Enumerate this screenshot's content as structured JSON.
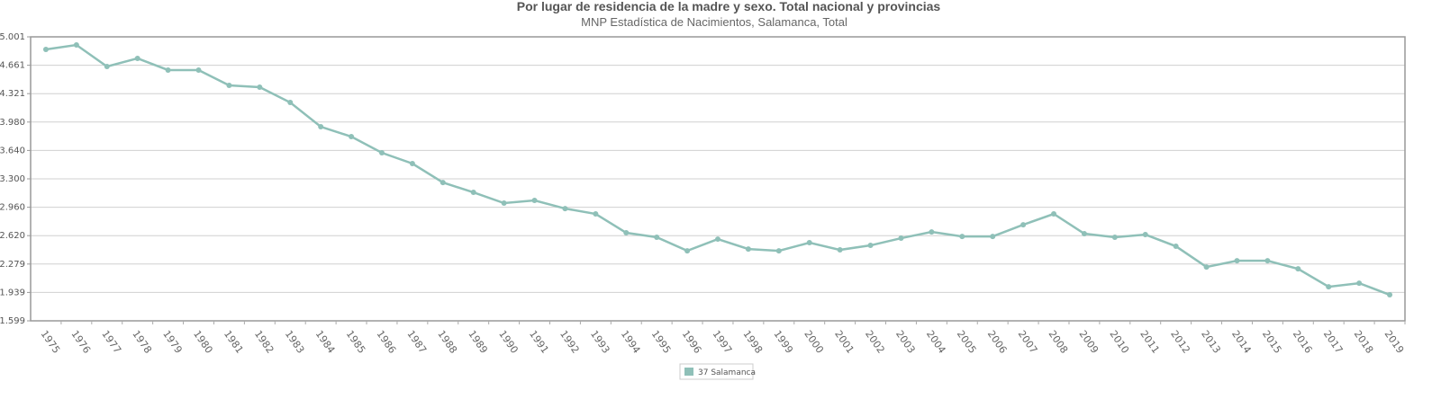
{
  "chart_data": {
    "type": "line",
    "title": "Por lugar de residencia de la madre y sexo. Total nacional y provincias",
    "subtitle": "MNP Estadística de Nacimientos, Salamanca, Total",
    "xlabel": "",
    "ylabel": "",
    "ylim": [
      1599,
      5001
    ],
    "yticks": [
      "5.001",
      "4.661",
      "4.321",
      "3.980",
      "3.640",
      "3.300",
      "2.960",
      "2.620",
      "2.279",
      "1.939",
      "1.599"
    ],
    "grid": true,
    "legend_position": "bottom",
    "categories": [
      "1975",
      "1976",
      "1977",
      "1978",
      "1979",
      "1980",
      "1981",
      "1982",
      "1983",
      "1984",
      "1985",
      "1986",
      "1987",
      "1988",
      "1989",
      "1990",
      "1991",
      "1992",
      "1993",
      "1994",
      "1995",
      "1996",
      "1997",
      "1998",
      "1999",
      "2000",
      "2001",
      "2002",
      "2003",
      "2004",
      "2005",
      "2006",
      "2007",
      "2008",
      "2009",
      "2010",
      "2011",
      "2012",
      "2013",
      "2014",
      "2015",
      "2016",
      "2017",
      "2018",
      "2019"
    ],
    "series": [
      {
        "name": "37 Salamanca",
        "color": "#8fc0b8",
        "values": [
          4850,
          4904,
          4646,
          4743,
          4603,
          4603,
          4420,
          4398,
          4215,
          3924,
          3806,
          3612,
          3483,
          3256,
          3138,
          3009,
          3041,
          2944,
          2880,
          2654,
          2600,
          2438,
          2578,
          2459,
          2438,
          2535,
          2449,
          2503,
          2589,
          2664,
          2610,
          2610,
          2750,
          2880,
          2643,
          2600,
          2632,
          2492,
          2244,
          2319,
          2319,
          2222,
          2007,
          2050,
          1911
        ]
      }
    ]
  }
}
